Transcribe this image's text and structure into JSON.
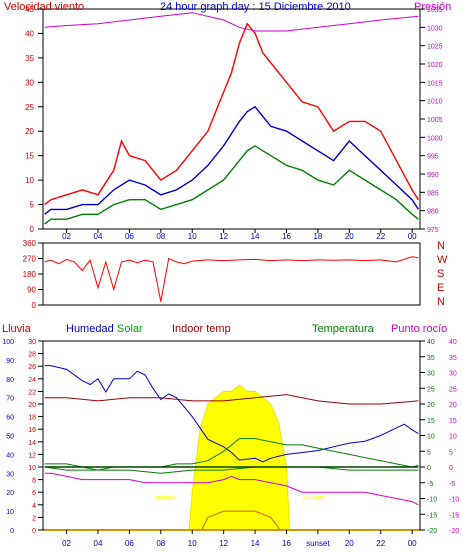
{
  "page": {
    "title": "24 hour graph day : 15 Diciembre 2010"
  },
  "colors": {
    "wind_speed": "#ff0000",
    "wind_gust_dark": "#0000cc",
    "wind_avg": "#008000",
    "pressure": "#cc00cc",
    "humidity": "#0000cc",
    "solar": "#00aa00",
    "indoor_temp": "#990000",
    "temperature": "#008000",
    "dew_point": "#cc00cc",
    "sun_fill": "#ffff00",
    "axis_red": "#cc0000",
    "axis_blue": "#0000cc",
    "axis_green": "#008000",
    "axis_magenta": "#cc00cc"
  },
  "chart_data": [
    {
      "type": "line",
      "title": "24 hour graph day : 15 Diciembre 2010",
      "ylabel": "Velocidad viento",
      "y2label": "Presión",
      "x_ticks": [
        "02",
        "04",
        "06",
        "08",
        "10",
        "12",
        "14",
        "16",
        "18",
        "20",
        "22",
        "00"
      ],
      "x_range": [
        0.5,
        24.5
      ],
      "y_ticks": [
        0,
        5,
        10,
        15,
        20,
        25,
        30,
        35,
        40,
        45
      ],
      "ylim": [
        0,
        45
      ],
      "y2_ticks": [
        975,
        980,
        985,
        990,
        995,
        1000,
        1005,
        1010,
        1015,
        1020,
        1025,
        1030,
        1035
      ],
      "y2lim": [
        975,
        1035
      ],
      "series": [
        {
          "key": "speed_max",
          "x": [
            0.6,
            1,
            2,
            3,
            4,
            5,
            5.5,
            6,
            7,
            8,
            9,
            10,
            11,
            12,
            12.5,
            13,
            13.5,
            14,
            14.5,
            15,
            16,
            17,
            18,
            19,
            20,
            21,
            22,
            23,
            24,
            24.4
          ],
          "values": [
            5,
            6,
            7,
            8,
            7,
            12,
            18,
            15,
            14,
            10,
            12,
            16,
            20,
            28,
            32,
            38,
            42,
            40,
            36,
            34,
            30,
            26,
            25,
            20,
            22,
            22,
            20,
            14,
            8,
            6
          ]
        },
        {
          "key": "speed_avg",
          "x": [
            0.6,
            1,
            2,
            3,
            4,
            5,
            6,
            7,
            8,
            9,
            10,
            11,
            12,
            13,
            13.5,
            14,
            14.5,
            15,
            16,
            17,
            18,
            19,
            20,
            21,
            22,
            23,
            24,
            24.4
          ],
          "values": [
            3,
            4,
            4,
            5,
            5,
            8,
            10,
            9,
            7,
            8,
            10,
            13,
            17,
            22,
            24,
            25,
            23,
            21,
            20,
            18,
            16,
            14,
            18,
            15,
            12,
            9,
            6,
            4
          ]
        },
        {
          "key": "speed_min",
          "x": [
            0.6,
            1,
            2,
            3,
            4,
            5,
            6,
            7,
            8,
            9,
            10,
            11,
            12,
            13,
            13.5,
            14,
            14.5,
            15,
            16,
            17,
            18,
            19,
            20,
            21,
            22,
            23,
            24,
            24.4
          ],
          "values": [
            1,
            2,
            2,
            3,
            3,
            5,
            6,
            6,
            4,
            5,
            6,
            8,
            10,
            14,
            16,
            17,
            16,
            15,
            13,
            12,
            10,
            9,
            12,
            10,
            8,
            6,
            3,
            2
          ]
        },
        {
          "key": "pressure",
          "axis": "y2",
          "x": [
            0.6,
            2,
            4,
            6,
            8,
            10,
            12,
            13,
            14,
            16,
            18,
            20,
            22,
            24.4
          ],
          "values": [
            1030,
            1030.5,
            1031,
            1032,
            1033,
            1034,
            1032,
            1030,
            1029,
            1029,
            1030,
            1031,
            1032,
            1033
          ]
        }
      ]
    },
    {
      "type": "line",
      "x_ticks": [
        "02",
        "04",
        "06",
        "08",
        "10",
        "12",
        "14",
        "16",
        "18",
        "20",
        "22",
        "00"
      ],
      "x_range": [
        0.5,
        24.5
      ],
      "y_ticks": [
        0,
        90,
        180,
        270,
        360
      ],
      "ylim": [
        0,
        360
      ],
      "compass": [
        "N",
        "W",
        "S",
        "E",
        "N"
      ],
      "series": [
        {
          "key": "wind_direction",
          "x": [
            0.6,
            1,
            1.5,
            2,
            2.5,
            3,
            3.5,
            4,
            4.5,
            5,
            5.5,
            6,
            6.5,
            7,
            7.5,
            8,
            8.5,
            9,
            9.5,
            10,
            11,
            12,
            13,
            14,
            15,
            16,
            17,
            18,
            19,
            20,
            21,
            22,
            23,
            24,
            24.4
          ],
          "values": [
            250,
            260,
            240,
            265,
            250,
            200,
            260,
            100,
            250,
            90,
            250,
            260,
            245,
            260,
            250,
            20,
            270,
            250,
            240,
            255,
            262,
            258,
            262,
            265,
            258,
            262,
            258,
            262,
            260,
            262,
            258,
            262,
            250,
            280,
            275
          ]
        }
      ]
    },
    {
      "type": "line",
      "labels": {
        "rain": "Lluvia",
        "humidity": "Humedad",
        "solar": "Solar",
        "indoor": "Indoor temp",
        "temperature": "Temperatura",
        "dew": "Punto rocío"
      },
      "x_ticks": [
        "02",
        "04",
        "06",
        "08",
        "10",
        "12",
        "14",
        "16",
        "sunset",
        "20",
        "22",
        "00"
      ],
      "x_range": [
        0.5,
        24.5
      ],
      "axes": {
        "humidity": {
          "ticks": [
            0,
            10,
            20,
            30,
            40,
            50,
            60,
            70,
            80,
            90,
            100
          ],
          "lim": [
            0,
            100
          ]
        },
        "rain": {
          "ticks": [
            0,
            2,
            4,
            6,
            8,
            10,
            12,
            14,
            16,
            18,
            20,
            22,
            24,
            26,
            28,
            30
          ],
          "lim": [
            0,
            30
          ]
        },
        "temperature": {
          "ticks": [
            -20,
            -15,
            -10,
            -5,
            0,
            5,
            10,
            15,
            20,
            25,
            30,
            35,
            40
          ],
          "lim": [
            -20,
            40
          ]
        },
        "dew_point": {
          "ticks": [
            -20,
            -15,
            -10,
            -5,
            0,
            5,
            10,
            15,
            20,
            25,
            30,
            35,
            40
          ],
          "lim": [
            -20,
            40
          ]
        }
      },
      "sun_markers": [
        {
          "label": "sunrise",
          "x": 8.3
        },
        {
          "label": "sunset",
          "x": 17.7
        }
      ],
      "series": [
        {
          "key": "humidity",
          "axis": "humidity",
          "x": [
            0.6,
            1,
            2,
            3,
            3.5,
            4,
            4.5,
            5,
            6,
            6.5,
            7,
            7.5,
            8,
            8.5,
            9,
            10,
            11,
            12,
            12.5,
            13,
            14,
            14.5,
            15,
            16,
            17,
            18,
            19,
            20,
            21,
            22,
            23,
            23.5,
            24,
            24.4
          ],
          "values": [
            87,
            87,
            85,
            79,
            77,
            80,
            73,
            80,
            80,
            84,
            82,
            75,
            69,
            72,
            70,
            60,
            48,
            44,
            41,
            37,
            38,
            36,
            38,
            40,
            41,
            42,
            44,
            46,
            47,
            50,
            54,
            56,
            53,
            51
          ]
        },
        {
          "key": "indoor_temp",
          "axis": "temperature",
          "x": [
            0.6,
            2,
            4,
            6,
            8,
            10,
            12,
            14,
            16,
            18,
            20,
            22,
            24.4
          ],
          "values": [
            22,
            22,
            21,
            22,
            22,
            21,
            21,
            22,
            23,
            21,
            20,
            20,
            21
          ]
        },
        {
          "key": "temperature",
          "axis": "temperature",
          "x": [
            0.6,
            1,
            2,
            3,
            4,
            5,
            6,
            7,
            8,
            9,
            10,
            11,
            12,
            13,
            14,
            15,
            16,
            17,
            18,
            19,
            20,
            21,
            22,
            23,
            24,
            24.4
          ],
          "values": [
            1,
            1,
            1,
            0,
            -1,
            0,
            0,
            0,
            0,
            1,
            1,
            2,
            5,
            9,
            9,
            8,
            7,
            7,
            6,
            5,
            4,
            3,
            2,
            1,
            0,
            0.5
          ]
        },
        {
          "key": "temperature_min",
          "axis": "temperature",
          "x": [
            0.6,
            2,
            4,
            6,
            8,
            10,
            12,
            14,
            16,
            18,
            20,
            22,
            24.4
          ],
          "values": [
            0,
            -1,
            -1,
            -1,
            -2,
            -1,
            -1,
            0,
            0,
            0,
            -1,
            -1,
            -1
          ]
        },
        {
          "key": "temperature_avg",
          "axis": "temperature",
          "x": [
            0.6,
            24.4
          ],
          "values": [
            0,
            0
          ]
        },
        {
          "key": "dew_point",
          "axis": "dew_point",
          "x": [
            0.6,
            1,
            2,
            3,
            4,
            5,
            6,
            7,
            8,
            9,
            10,
            11,
            12,
            12.5,
            13,
            14,
            15,
            16,
            17,
            18,
            19,
            20,
            21,
            22,
            23,
            24,
            24.4
          ],
          "values": [
            -2,
            -2,
            -3,
            -4,
            -4,
            -4,
            -4,
            -5,
            -5,
            -5,
            -5,
            -5,
            -4,
            -3,
            -4,
            -4,
            -5,
            -6,
            -8,
            -8,
            -8,
            -8,
            -8,
            -9,
            -10,
            -11,
            -12
          ]
        },
        {
          "key": "solar",
          "axis": "rain",
          "x": [
            9.8,
            10,
            10.5,
            11,
            11.5,
            12,
            12.5,
            13,
            13.5,
            14,
            14.5,
            15,
            15.5,
            16,
            16.2
          ],
          "values": [
            0,
            6,
            16,
            20,
            21,
            22,
            22,
            23,
            22,
            22,
            21,
            20,
            17,
            10,
            0
          ]
        },
        {
          "key": "solar_inner",
          "axis": "rain",
          "x": [
            10.6,
            11,
            12,
            13,
            14,
            15,
            15.6
          ],
          "values": [
            0,
            2,
            3,
            3,
            3,
            2,
            0
          ]
        },
        {
          "key": "rain",
          "axis": "rain",
          "x": [
            0.6,
            24.4
          ],
          "values": [
            0,
            0
          ]
        }
      ]
    }
  ]
}
